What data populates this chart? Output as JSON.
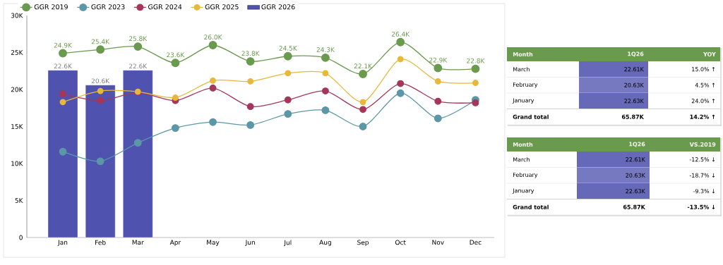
{
  "chart_data": [
    {
      "type": "line",
      "legend": "top left",
      "marker": "circle",
      "grid": false,
      "categories": [
        "Jan",
        "Feb",
        "Mar",
        "Apr",
        "May",
        "Jun",
        "Jul",
        "Aug",
        "Sep",
        "Oct",
        "Nov",
        "Dec"
      ],
      "ylim": [
        0,
        30000
      ],
      "yticks": [
        0,
        {
          "value": 5000,
          "label": "5K"
        },
        {
          "value": 10000,
          "label": "10K"
        },
        {
          "value": 15000,
          "label": "15K"
        },
        {
          "value": 20000,
          "label": "20K"
        },
        {
          "value": 25000,
          "label": "25K"
        },
        {
          "value": 30000,
          "label": "30K"
        }
      ],
      "series": [
        {
          "name": "GGR 2019",
          "color": "#6a9a4e",
          "values": [
            24900,
            25400,
            25800,
            23600,
            26000,
            23800,
            24500,
            24300,
            22100,
            26400,
            22900,
            22800
          ],
          "value_labels": [
            "24.9K",
            "25.4K",
            "25.8K",
            "23.6K",
            "26.0K",
            "23.8K",
            "24.5K",
            "24.3K",
            "22.1K",
            "26.4K",
            "22.9K",
            "22.8K"
          ]
        },
        {
          "name": "GGR 2023",
          "color": "#5b97a6",
          "values": [
            11600,
            10300,
            12800,
            14800,
            15600,
            15200,
            16700,
            17200,
            15000,
            19500,
            16100,
            18600
          ]
        },
        {
          "name": "GGR 2024",
          "color": "#a3375a",
          "values": [
            19400,
            18500,
            19600,
            18500,
            20200,
            17700,
            18600,
            19800,
            17300,
            20800,
            18400,
            18200
          ]
        },
        {
          "name": "GGR 2025",
          "color": "#e8b83a",
          "values": [
            18300,
            19800,
            19700,
            18900,
            21200,
            21100,
            22200,
            22200,
            18300,
            24100,
            21100,
            20900
          ]
        },
        {
          "name": "GGR 2026",
          "type": "bar",
          "color": "#4f52ae",
          "values": [
            22600,
            20600,
            22600,
            null,
            null,
            null,
            null,
            null,
            null,
            null,
            null,
            null
          ],
          "value_labels": [
            "22.6K",
            "20.6K",
            "22.6K",
            null,
            null,
            null,
            null,
            null,
            null,
            null,
            null,
            null
          ]
        }
      ]
    },
    {
      "type": "other",
      "annotations": [
        "Month",
        "1Q26",
        "YOY",
        "March",
        "22.61K",
        "15.0% ↑",
        "February",
        "20.63K",
        "4.5% ↑",
        "January",
        "22.63K",
        "24.0% ↑",
        "Grand total",
        "65.87K",
        "14.2% ↑"
      ]
    },
    {
      "type": "other",
      "annotations": [
        "Month",
        "1Q26",
        "VS.2019",
        "March",
        "22.61K",
        "-12.5% ↓",
        "February",
        "20.63K",
        "-18.7% ↓",
        "January",
        "22.63K",
        "-9.3% ↓",
        "Grand total",
        "65.87K",
        "-13.5% ↓"
      ]
    }
  ]
}
